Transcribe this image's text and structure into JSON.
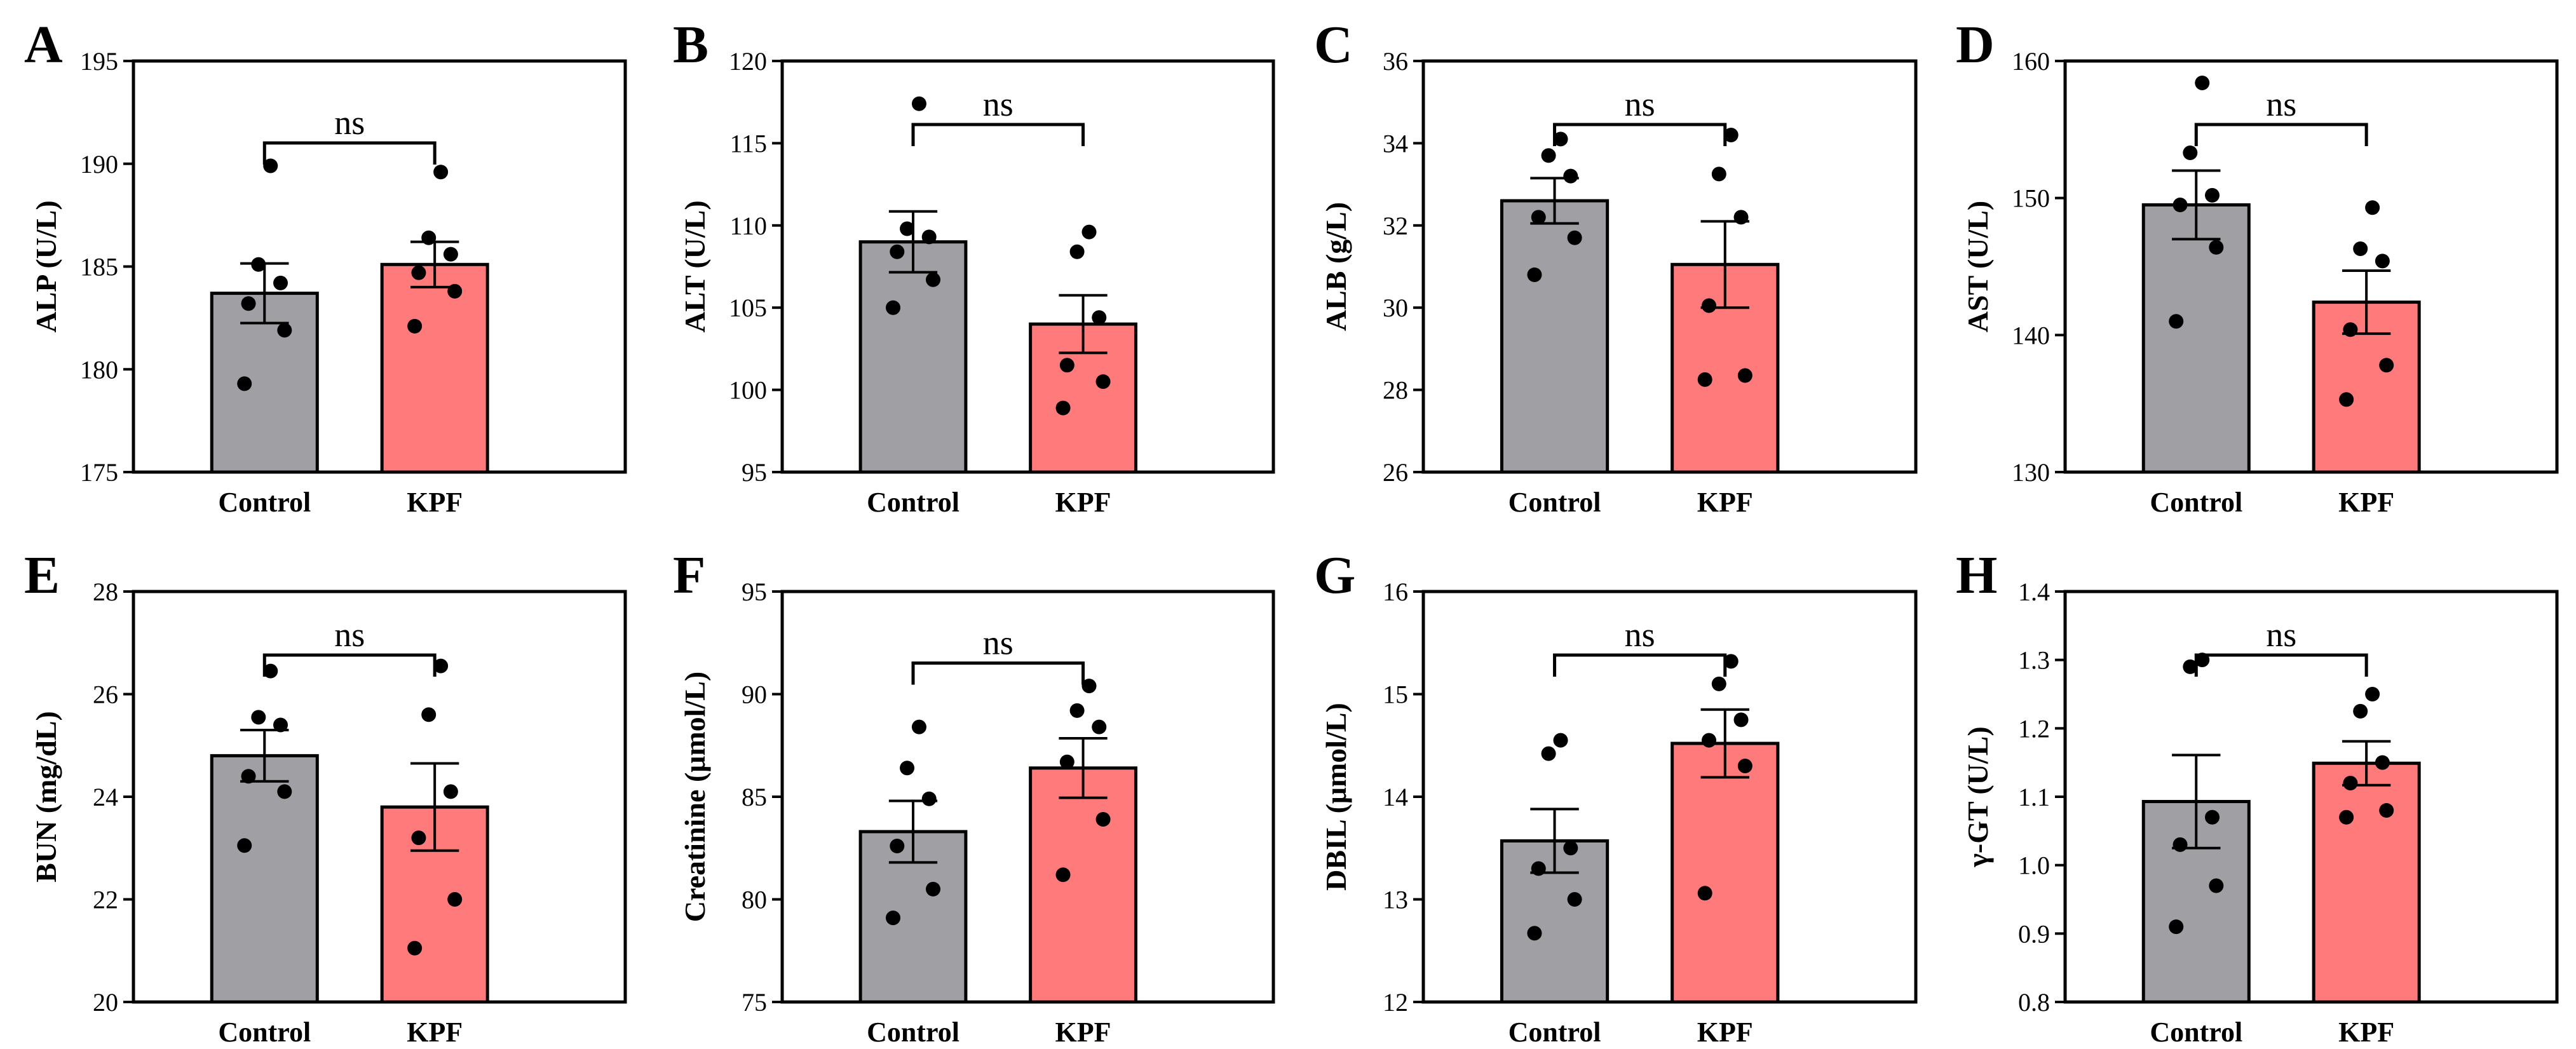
{
  "figure": {
    "colors": {
      "control": "#a09fa4",
      "kpf": "#ff7b7b",
      "stroke": "#000000"
    }
  },
  "chart_data": [
    {
      "type": "bar",
      "panel": "A",
      "ylabel": "ALP (U/L)",
      "categories": [
        "Control",
        "KPF"
      ],
      "ylim": [
        175,
        195
      ],
      "yticks": [
        175,
        180,
        185,
        190,
        195
      ],
      "means": [
        183.7,
        185.1
      ],
      "sem": [
        1.45,
        1.1
      ],
      "points": [
        [
          179.3,
          181.9,
          183.2,
          184.2,
          185.1,
          189.9
        ],
        [
          182.1,
          183.8,
          184.7,
          185.6,
          186.4,
          189.6
        ]
      ],
      "significance": "ns"
    },
    {
      "type": "bar",
      "panel": "B",
      "ylabel": "ALT (U/L)",
      "categories": [
        "Control",
        "KPF"
      ],
      "ylim": [
        95,
        120
      ],
      "yticks": [
        95,
        100,
        105,
        110,
        115,
        120
      ],
      "means": [
        109.0,
        104.0
      ],
      "sem": [
        1.85,
        1.75
      ],
      "points": [
        [
          105.0,
          106.7,
          108.4,
          109.3,
          109.8,
          117.4
        ],
        [
          98.9,
          100.5,
          101.5,
          104.4,
          108.4,
          109.6
        ]
      ],
      "significance": "ns"
    },
    {
      "type": "bar",
      "panel": "C",
      "ylabel": "ALB (g/L)",
      "categories": [
        "Control",
        "KPF"
      ],
      "ylim": [
        26,
        36
      ],
      "yticks": [
        26,
        28,
        30,
        32,
        34,
        36
      ],
      "means": [
        32.6,
        31.05
      ],
      "sem": [
        0.55,
        1.05
      ],
      "points": [
        [
          30.8,
          31.7,
          32.2,
          33.2,
          33.7,
          34.1
        ],
        [
          28.25,
          28.35,
          30.05,
          32.2,
          33.25,
          34.2
        ]
      ],
      "significance": "ns"
    },
    {
      "type": "bar",
      "panel": "D",
      "ylabel": "AST (U/L)",
      "categories": [
        "Control",
        "KPF"
      ],
      "ylim": [
        130,
        160
      ],
      "yticks": [
        130,
        140,
        150,
        160
      ],
      "means": [
        149.5,
        142.4
      ],
      "sem": [
        2.5,
        2.3
      ],
      "points": [
        [
          141.0,
          146.4,
          149.5,
          150.2,
          153.3,
          158.4
        ],
        [
          135.3,
          137.8,
          140.4,
          145.4,
          146.3,
          149.3
        ]
      ],
      "significance": "ns"
    },
    {
      "type": "bar",
      "panel": "E",
      "ylabel": "BUN (mg/dL)",
      "categories": [
        "Control",
        "KPF"
      ],
      "ylim": [
        20,
        28
      ],
      "yticks": [
        20,
        22,
        24,
        26,
        28
      ],
      "means": [
        24.8,
        23.8
      ],
      "sem": [
        0.5,
        0.85
      ],
      "points": [
        [
          23.05,
          24.1,
          24.4,
          25.4,
          25.55,
          26.45
        ],
        [
          21.05,
          22.0,
          23.2,
          24.1,
          25.6,
          26.55
        ]
      ],
      "significance": "ns"
    },
    {
      "type": "bar",
      "panel": "F",
      "ylabel": "Creatinine (μmol/L)",
      "categories": [
        "Control",
        "KPF"
      ],
      "ylim": [
        75,
        95
      ],
      "yticks": [
        75,
        80,
        85,
        90,
        95
      ],
      "means": [
        83.3,
        86.4
      ],
      "sem": [
        1.5,
        1.45
      ],
      "points": [
        [
          79.1,
          80.5,
          82.6,
          84.9,
          86.4,
          88.4
        ],
        [
          81.2,
          83.9,
          86.7,
          88.4,
          89.2,
          90.4
        ]
      ],
      "significance": "ns"
    },
    {
      "type": "bar",
      "panel": "G",
      "ylabel": "DBIL (μmol/L)",
      "categories": [
        "Control",
        "KPF"
      ],
      "ylim": [
        12,
        16
      ],
      "yticks": [
        12,
        13,
        14,
        15,
        16
      ],
      "means": [
        13.57,
        14.52
      ],
      "sem": [
        0.31,
        0.33
      ],
      "points": [
        [
          12.67,
          13.0,
          13.3,
          13.5,
          14.42,
          14.55
        ],
        [
          13.06,
          14.3,
          14.55,
          14.75,
          15.1,
          15.32
        ]
      ],
      "significance": "ns"
    },
    {
      "type": "bar",
      "panel": "H",
      "ylabel": "γ-GT (U/L)",
      "categories": [
        "Control",
        "KPF"
      ],
      "ylim": [
        0.8,
        1.4
      ],
      "yticks": [
        0.8,
        0.9,
        1.0,
        1.1,
        1.2,
        1.3,
        1.4
      ],
      "means": [
        1.093,
        1.149
      ],
      "sem": [
        0.068,
        0.032
      ],
      "points": [
        [
          0.91,
          0.97,
          1.03,
          1.07,
          1.29,
          1.3
        ],
        [
          1.07,
          1.08,
          1.12,
          1.15,
          1.225,
          1.25
        ]
      ],
      "significance": "ns"
    }
  ]
}
